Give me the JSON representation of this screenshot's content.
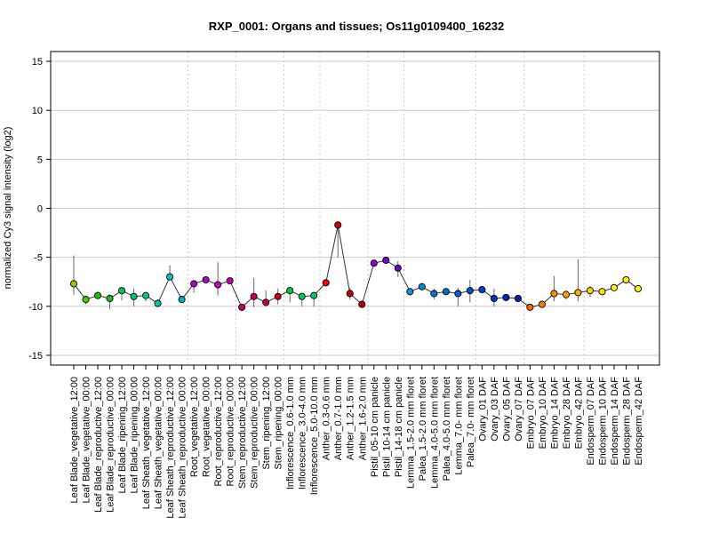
{
  "chart_data": {
    "type": "line",
    "title": "RXP_0001: Organs and tissues; Os11g0109400_16232",
    "xlabel": "",
    "ylabel": "normalized Cy3 signal intensity (log2)",
    "ylim": [
      -16,
      16
    ],
    "yticks": [
      -15,
      -10,
      -5,
      0,
      5,
      10,
      15
    ],
    "grid": {
      "horizontal": true,
      "vertical_dotted_group_separators": true
    },
    "categories": [
      "Leaf Blade_vegetative_12:00",
      "Leaf Blade_vegetative_00:00",
      "Leaf Blade_reproductive_12:00",
      "Leaf Blade_reproductive_00:00",
      "Leaf Blade_ripening_12:00",
      "Leaf Blade_ripening_00:00",
      "Leaf Sheath_vegetative_12:00",
      "Leaf Sheath_vegetative_00:00",
      "Leaf Sheath_reproductive_12:00",
      "Leaf Sheath_reproductive_00:00",
      "Root_vegetative_12:00",
      "Root_vegetative_00:00",
      "Root_reproductive_12:00",
      "Root_reproductive_00:00",
      "Stem_reproductive_12:00",
      "Stem_reproductive_00:00",
      "Stem_ripening_12:00",
      "Stem_ripening_00:00",
      "Inflorescence_0.6-1.0 mm",
      "Inflorescence_3.0-4.0 mm",
      "Inflorescence_5.0-10.0 mm",
      "Anther_0.3-0.6 mm",
      "Anther_0.7-1.0 mm",
      "Anther_1.2-1.5 mm",
      "Anther_1.6-2.0 mm",
      "Pistil_05-10 cm panicle",
      "Pistil_10-14 cm panicle",
      "Pistil_14-18 cm panicle",
      "Lemma_1.5-2.0 mm floret",
      "Palea_1.5-2.0 mm floret",
      "Lemma_4.0-5.0 mm floret",
      "Palea_4.0-5.0 mm floret",
      "Lemma_7.0- mm floret",
      "Palea_7.0- mm floret",
      "Ovary_01 DAF",
      "Ovary_03 DAF",
      "Ovary_05 DAF",
      "Ovary_07 DAF",
      "Embryo_07 DAF",
      "Embryo_10 DAF",
      "Embryo_14 DAF",
      "Embryo_28 DAF",
      "Embryo_42 DAF",
      "Endosperm_07 DAF",
      "Endosperm_10 DAF",
      "Endosperm_14 DAF",
      "Endosperm_28 DAF",
      "Endosperm_42 DAF"
    ],
    "values": [
      -7.7,
      -9.3,
      -8.9,
      -9.2,
      -8.4,
      -9.0,
      -8.9,
      -9.7,
      -7.0,
      -9.3,
      -7.7,
      -7.3,
      -7.8,
      -7.4,
      -10.1,
      -9.0,
      -9.6,
      -9.0,
      -8.4,
      -9.0,
      -8.9,
      -7.6,
      -1.7,
      -8.7,
      -9.8,
      -5.6,
      -5.3,
      -6.1,
      -8.5,
      -8.0,
      -8.7,
      -8.5,
      -8.7,
      -8.4,
      -8.3,
      -9.2,
      -9.1,
      -9.2,
      -10.1,
      -9.8,
      -8.7,
      -8.8,
      -8.6,
      -8.4,
      -8.5,
      -8.1,
      -7.3,
      -8.2
    ],
    "error_low": [
      -8.8,
      -9.8,
      -9.2,
      -10.3,
      -9.4,
      -10.0,
      -9.5,
      -10.1,
      -7.3,
      -9.6,
      -8.6,
      -7.6,
      -8.9,
      -7.7,
      -10.3,
      -10.1,
      -9.9,
      -9.8,
      -9.6,
      -10.0,
      -10.0,
      -7.8,
      -5.0,
      -9.3,
      -10.0,
      -5.8,
      -5.6,
      -7.0,
      -8.9,
      -8.2,
      -9.3,
      -8.7,
      -10.0,
      -9.6,
      -8.5,
      -10.0,
      -9.5,
      -9.5,
      -10.2,
      -10.0,
      -9.5,
      -9.3,
      -9.5,
      -9.0,
      -8.8,
      -8.4,
      -7.6,
      -8.4
    ],
    "error_high": [
      -4.8,
      -9.0,
      -8.7,
      -8.8,
      -8.1,
      -8.2,
      -8.6,
      -9.3,
      -5.8,
      -9.0,
      -7.4,
      -7.0,
      -5.5,
      -7.2,
      -9.9,
      -7.1,
      -8.4,
      -8.2,
      -8.1,
      -8.6,
      -8.7,
      -7.4,
      -1.4,
      -8.1,
      -9.6,
      -5.3,
      -5.0,
      -5.4,
      -8.2,
      -7.7,
      -8.2,
      -8.2,
      -8.1,
      -7.3,
      -7.9,
      -8.2,
      -8.8,
      -8.9,
      -9.9,
      -9.5,
      -6.9,
      -8.4,
      -5.2,
      -7.9,
      -8.2,
      -7.9,
      -7.0,
      -7.9
    ],
    "colors": [
      "#8fcf00",
      "#4cc900",
      "#11c700",
      "#09c51a",
      "#00c94a",
      "#00c86e",
      "#00c890",
      "#00c9b0",
      "#00c5c9",
      "#00b2c9",
      "#a900d1",
      "#b700d1",
      "#c800c9",
      "#c900a8",
      "#ca006e",
      "#c8005b",
      "#c8003d",
      "#cc0020",
      "#00c932",
      "#00c94c",
      "#00c965",
      "#ff0000",
      "#d40000",
      "#c40000",
      "#b00000",
      "#9000d0",
      "#7a00d0",
      "#6b00d0",
      "#009ad2",
      "#0088d2",
      "#0078d2",
      "#006cd2",
      "#005fd2",
      "#0050d2",
      "#0040d2",
      "#0032d2",
      "#0028c8",
      "#0020bf",
      "#ff6600",
      "#ff7a00",
      "#ff8c00",
      "#ffa000",
      "#ffb000",
      "#ffd000",
      "#ffe000",
      "#ffee00",
      "#fff000",
      "#ffff00"
    ],
    "group_separators_after_index": [
      9,
      13,
      17,
      20,
      24,
      27,
      33,
      37,
      42
    ]
  }
}
